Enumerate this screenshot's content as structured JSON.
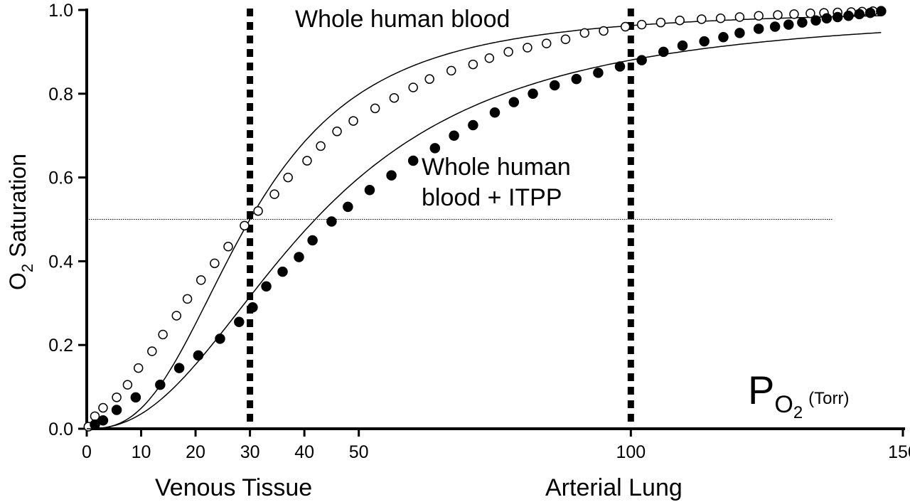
{
  "chart_data": {
    "type": "line",
    "ylabel": {
      "main": "O",
      "sub": "2",
      "rest": " Saturation"
    },
    "xlabel": {
      "main": "P",
      "sub": "O",
      "sub2": "2",
      "unit": "(Torr)"
    },
    "xlim": [
      0,
      150
    ],
    "ylim": [
      0,
      1.0
    ],
    "x_ticks": [
      0,
      10,
      20,
      30,
      40,
      50,
      100,
      150
    ],
    "y_ticks": [
      0.0,
      0.2,
      0.4,
      0.6,
      0.8,
      1.0
    ],
    "x_tick_labels": [
      "0",
      "10",
      "20",
      "30",
      "40",
      "50",
      "100",
      "150"
    ],
    "y_tick_labels": [
      "0.0",
      "0.2",
      "0.4",
      "0.6",
      "0.8",
      "1.0"
    ],
    "annotations": {
      "whole_blood": "Whole human blood",
      "itpp_line1": "Whole human",
      "itpp_line2": "blood + ITPP",
      "venous": "Venous Tissue",
      "arterial": "Arterial Lung"
    },
    "reference_lines": {
      "vertical_x": [
        30,
        100
      ],
      "horizontal_y": 0.5
    },
    "series": [
      {
        "marker": "open-circle",
        "p50": 30,
        "hill_n": 2.7,
        "x": [
          0.3,
          1.5,
          3,
          5.5,
          7.5,
          9.5,
          12,
          14,
          16.5,
          18.5,
          21,
          23.5,
          26,
          29,
          31.5,
          34.5,
          37,
          40.5,
          43,
          46,
          49,
          53,
          56.5,
          60,
          63,
          67,
          71,
          74,
          77.5,
          81,
          84.5,
          88,
          91.5,
          95,
          99,
          102,
          105.5,
          109,
          113,
          116.5,
          120,
          123.5,
          127,
          130,
          133,
          135.5,
          138,
          140.5,
          142.5,
          144.5,
          146
        ],
        "y": [
          0.005,
          0.03,
          0.05,
          0.075,
          0.105,
          0.145,
          0.185,
          0.225,
          0.27,
          0.31,
          0.355,
          0.395,
          0.435,
          0.485,
          0.52,
          0.56,
          0.6,
          0.64,
          0.675,
          0.71,
          0.735,
          0.765,
          0.79,
          0.815,
          0.835,
          0.855,
          0.87,
          0.885,
          0.9,
          0.91,
          0.92,
          0.93,
          0.945,
          0.95,
          0.96,
          0.965,
          0.97,
          0.975,
          0.978,
          0.98,
          0.983,
          0.986,
          0.988,
          0.99,
          0.992,
          0.993,
          0.994,
          0.995,
          0.996,
          0.997,
          0.998
        ]
      },
      {
        "marker": "filled-circle",
        "p50": 42,
        "hill_n": 2.3,
        "x": [
          1.5,
          3,
          5.5,
          9,
          13.5,
          17,
          20.5,
          24.5,
          28,
          30.5,
          33,
          36,
          39,
          41.5,
          45,
          48,
          52,
          56,
          60,
          64,
          67.5,
          71,
          75,
          78.5,
          82,
          86,
          90,
          94,
          98,
          102,
          106,
          109.5,
          113.5,
          117,
          120,
          123.5,
          126.5,
          129,
          131.5,
          134,
          136,
          138,
          140,
          142,
          144,
          146
        ],
        "y": [
          0.01,
          0.02,
          0.045,
          0.075,
          0.105,
          0.145,
          0.175,
          0.215,
          0.255,
          0.29,
          0.34,
          0.375,
          0.41,
          0.45,
          0.495,
          0.53,
          0.57,
          0.605,
          0.64,
          0.67,
          0.7,
          0.725,
          0.755,
          0.78,
          0.8,
          0.82,
          0.835,
          0.85,
          0.865,
          0.88,
          0.9,
          0.915,
          0.925,
          0.935,
          0.945,
          0.955,
          0.96,
          0.965,
          0.97,
          0.975,
          0.98,
          0.983,
          0.986,
          0.99,
          0.993,
          0.997
        ]
      }
    ]
  }
}
